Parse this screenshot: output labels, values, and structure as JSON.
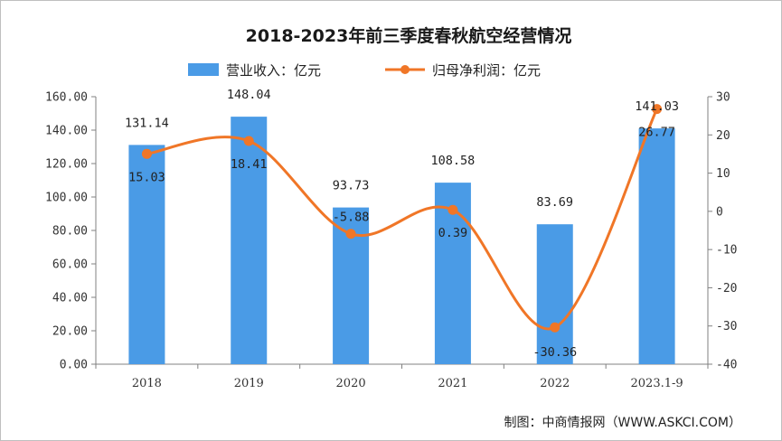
{
  "chart_data": {
    "type": "bar+line",
    "title": "2018-2023年前三季度春秋航空经营情况",
    "categories": [
      "2018",
      "2019",
      "2020",
      "2021",
      "2022",
      "2023.1-9"
    ],
    "series": [
      {
        "name": "营业收入：亿元",
        "kind": "bar",
        "axis": "left",
        "color": "#4a9be6",
        "values": [
          131.14,
          148.04,
          93.73,
          108.58,
          83.69,
          141.03
        ],
        "labels": [
          "131.14",
          "148.04",
          "93.73",
          "108.58",
          "83.69",
          "141.03"
        ]
      },
      {
        "name": "归母净利润：亿元",
        "kind": "line",
        "axis": "right",
        "color": "#f07627",
        "values": [
          15.03,
          18.41,
          -5.88,
          0.39,
          -30.36,
          26.77
        ],
        "labels": [
          "15.03",
          "18.41",
          "-5.88",
          "0.39",
          "-30.36",
          "26.77"
        ]
      }
    ],
    "y_left": {
      "min": 0,
      "max": 160,
      "ticks": [
        "0.00",
        "20.00",
        "40.00",
        "60.00",
        "80.00",
        "100.00",
        "120.00",
        "140.00",
        "160.00"
      ]
    },
    "y_right": {
      "min": -40,
      "max": 30,
      "ticks": [
        "-40",
        "-30",
        "-20",
        "-10",
        "0",
        "10",
        "20",
        "30"
      ]
    },
    "legend_position": "top",
    "grid": false
  },
  "source": "制图：中商情报网（WWW.ASKCI.COM）"
}
